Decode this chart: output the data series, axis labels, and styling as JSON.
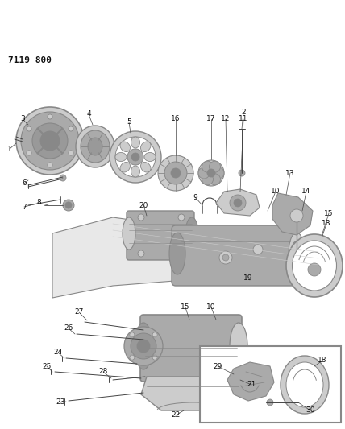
{
  "title": "7119 800",
  "bg_color": "#ffffff",
  "line_color": "#444444",
  "text_color": "#111111",
  "gray_dark": "#888888",
  "gray_mid": "#aaaaaa",
  "gray_light": "#cccccc",
  "gray_fill": "#bbbbbb",
  "gray_body": "#999999"
}
